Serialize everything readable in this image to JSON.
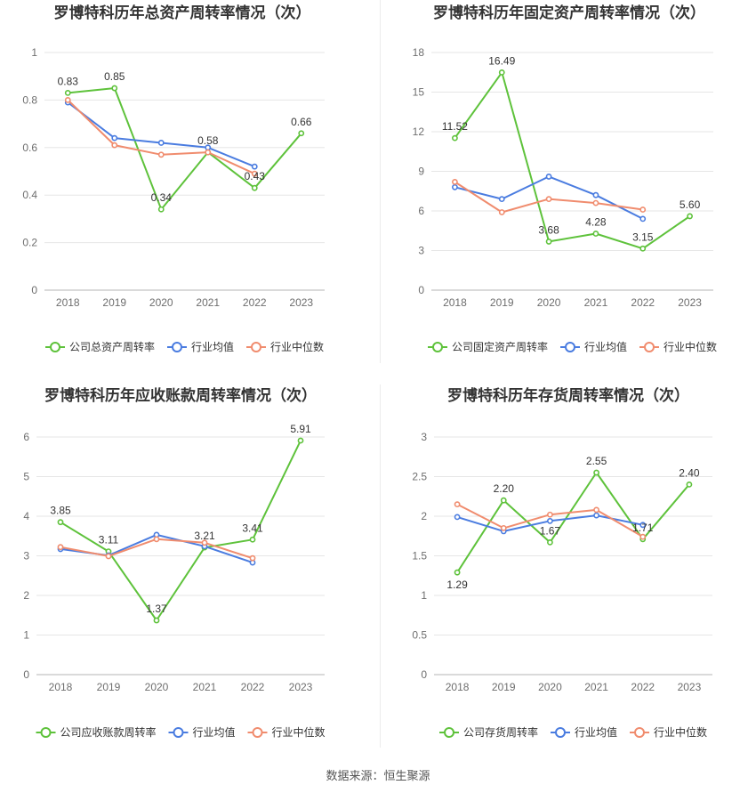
{
  "source": "数据来源：恒生聚源",
  "colors": {
    "company": "#5ec23b",
    "industry_mean": "#4a7ce0",
    "industry_median": "#f08c6e"
  },
  "chart_data": [
    {
      "type": "line",
      "title": "罗博特科历年总资产周转率情况（次）",
      "categories": [
        "2018",
        "2019",
        "2020",
        "2021",
        "2022",
        "2023"
      ],
      "ylim": [
        0,
        1
      ],
      "yticks": [
        "0",
        "0.2",
        "0.4",
        "0.6",
        "0.8",
        "1"
      ],
      "grid": true,
      "legend": "bottom",
      "series": [
        {
          "name": "公司总资产周转率",
          "values": [
            0.83,
            0.85,
            0.34,
            0.58,
            0.43,
            0.66
          ],
          "show_labels": true
        },
        {
          "name": "行业均值",
          "values": [
            0.79,
            0.64,
            0.62,
            0.6,
            0.52,
            null
          ]
        },
        {
          "name": "行业中位数",
          "values": [
            0.8,
            0.61,
            0.57,
            0.58,
            0.49,
            null
          ]
        }
      ]
    },
    {
      "type": "line",
      "title": "罗博特科历年固定资产周转率情况（次）",
      "categories": [
        "2018",
        "2019",
        "2020",
        "2021",
        "2022",
        "2023"
      ],
      "ylim": [
        0,
        18
      ],
      "yticks": [
        "0",
        "3",
        "6",
        "9",
        "12",
        "15",
        "18"
      ],
      "grid": true,
      "legend": "bottom",
      "series": [
        {
          "name": "公司固定资产周转率",
          "values": [
            11.52,
            16.49,
            3.68,
            4.28,
            3.15,
            5.6
          ],
          "show_labels": true
        },
        {
          "name": "行业均值",
          "values": [
            7.8,
            6.9,
            8.6,
            7.2,
            5.4,
            null
          ]
        },
        {
          "name": "行业中位数",
          "values": [
            8.2,
            5.9,
            6.9,
            6.6,
            6.1,
            null
          ]
        }
      ]
    },
    {
      "type": "line",
      "title": "罗博特科历年应收账款周转率情况（次）",
      "categories": [
        "2018",
        "2019",
        "2020",
        "2021",
        "2022",
        "2023"
      ],
      "ylim": [
        0,
        6
      ],
      "yticks": [
        "0",
        "1",
        "2",
        "3",
        "4",
        "5",
        "6"
      ],
      "grid": true,
      "legend": "bottom",
      "series": [
        {
          "name": "公司应收账款周转率",
          "values": [
            3.85,
            3.11,
            1.37,
            3.21,
            3.41,
            5.91
          ],
          "show_labels": true
        },
        {
          "name": "行业均值",
          "values": [
            3.17,
            3.01,
            3.53,
            3.24,
            2.83,
            null
          ]
        },
        {
          "name": "行业中位数",
          "values": [
            3.22,
            2.99,
            3.42,
            3.33,
            2.94,
            null
          ]
        }
      ]
    },
    {
      "type": "line",
      "title": "罗博特科历年存货周转率情况（次）",
      "categories": [
        "2018",
        "2019",
        "2020",
        "2021",
        "2022",
        "2023"
      ],
      "ylim": [
        0,
        3
      ],
      "yticks": [
        "0",
        "0.5",
        "1",
        "1.5",
        "2",
        "2.5",
        "3"
      ],
      "grid": true,
      "legend": "bottom",
      "series": [
        {
          "name": "公司存货周转率",
          "values": [
            1.29,
            2.2,
            1.67,
            2.55,
            1.71,
            2.4
          ],
          "show_labels": true
        },
        {
          "name": "行业均值",
          "values": [
            1.99,
            1.81,
            1.94,
            2.01,
            1.89,
            null
          ]
        },
        {
          "name": "行业中位数",
          "values": [
            2.15,
            1.85,
            2.02,
            2.08,
            1.74,
            null
          ]
        }
      ]
    }
  ]
}
